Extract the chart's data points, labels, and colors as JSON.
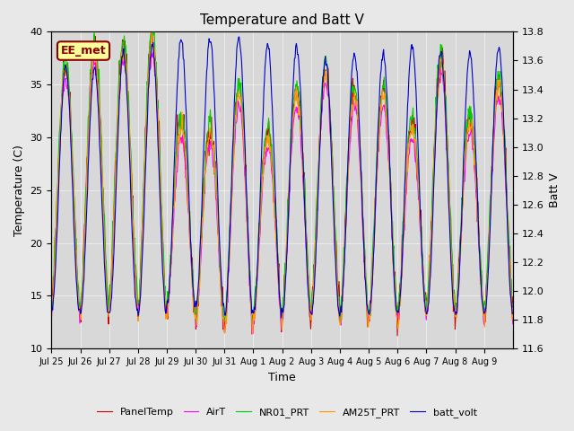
{
  "title": "Temperature and Batt V",
  "xlabel": "Time",
  "ylabel_left": "Temperature (C)",
  "ylabel_right": "Batt V",
  "annotation": "EE_met",
  "ylim_left": [
    10,
    40
  ],
  "ylim_right": [
    11.6,
    13.8
  ],
  "x_tick_labels": [
    "Jul 25",
    "Jul 26",
    "Jul 27",
    "Jul 28",
    "Jul 29",
    "Jul 30",
    "Jul 31",
    "Aug 1",
    "Aug 2",
    "Aug 3",
    "Aug 4",
    "Aug 5",
    "Aug 6",
    "Aug 7",
    "Aug 8",
    "Aug 9"
  ],
  "background_color": "#e8e8e8",
  "plot_bg_color": "#d8d8d8",
  "legend_entries": [
    {
      "label": "PanelTemp",
      "color": "#cc0000"
    },
    {
      "label": "AirT",
      "color": "#ff00ff"
    },
    {
      "label": "NR01_PRT",
      "color": "#00cc00"
    },
    {
      "label": "AM25T_PRT",
      "color": "#ff9900"
    },
    {
      "label": "batt_volt",
      "color": "#0000cc"
    }
  ],
  "n_days": 16,
  "pts_per_day": 48,
  "temp_min_day": [
    13.5,
    13.5,
    14.5,
    13.5,
    13.5,
    12.5,
    12.0,
    13.0,
    13.5,
    13.5,
    13.0,
    13.0,
    13.5,
    13.5,
    13.5,
    13.5
  ],
  "temp_max_day": [
    37.0,
    38.5,
    38.5,
    39.5,
    31.5,
    31.0,
    34.5,
    30.5,
    34.5,
    36.5,
    34.5,
    34.5,
    31.5,
    37.5,
    32.0,
    35.5
  ],
  "batt_min_day": [
    11.85,
    11.85,
    11.85,
    11.85,
    11.9,
    11.9,
    11.85,
    11.85,
    11.85,
    11.85,
    11.85,
    11.85,
    11.85,
    11.85,
    11.85,
    11.85
  ],
  "batt_max_day": [
    13.55,
    13.55,
    13.65,
    13.7,
    13.75,
    13.75,
    13.75,
    13.7,
    13.7,
    13.6,
    13.65,
    13.65,
    13.7,
    13.65,
    13.65,
    13.7
  ],
  "yticks_left": [
    10,
    15,
    20,
    25,
    30,
    35,
    40
  ],
  "yticks_right": [
    11.6,
    11.8,
    12.0,
    12.2,
    12.4,
    12.6,
    12.8,
    13.0,
    13.2,
    13.4,
    13.6,
    13.8
  ]
}
